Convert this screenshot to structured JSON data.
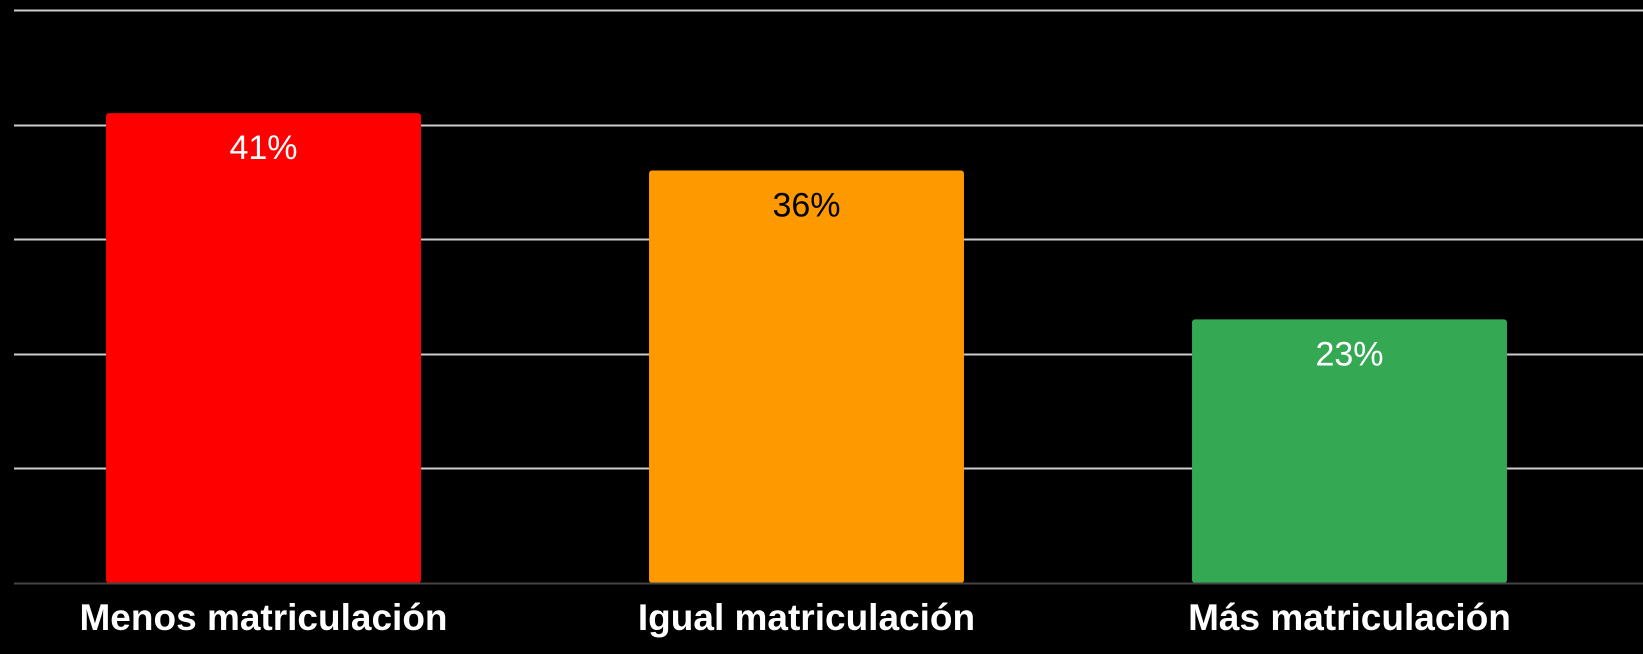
{
  "chart_data": {
    "type": "bar",
    "categories": [
      "Menos matriculación",
      "Igual matriculación",
      "Más matriculación"
    ],
    "values": [
      41,
      36,
      23
    ],
    "data_labels": [
      "41%",
      "36%",
      "23%"
    ],
    "colors": [
      "#ff0000",
      "#ff9900",
      "#34a853"
    ],
    "data_label_colors": [
      "#ffffff",
      "#000000",
      "#ffffff"
    ],
    "background": "#000000",
    "gridline_color": "#cccccc",
    "ylim": [
      0,
      50
    ],
    "y_tick_step": 10,
    "y_tick_labels_visible": false,
    "grid": true,
    "legend": "none",
    "title": "",
    "xlabel": "",
    "ylabel": ""
  }
}
